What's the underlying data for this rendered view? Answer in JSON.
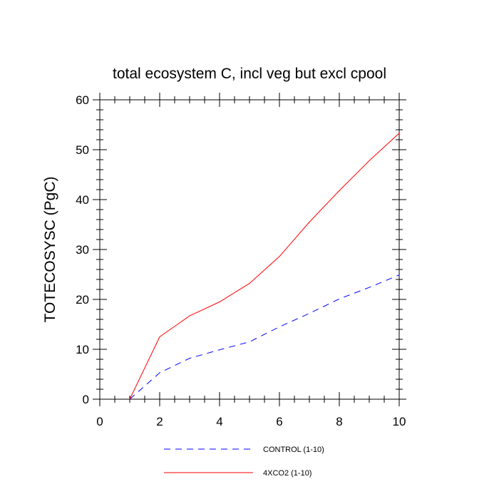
{
  "chart_data": {
    "type": "line",
    "title": "total ecosystem C, incl veg but excl cpool",
    "xlabel": "",
    "ylabel": "TOTECOSYSC  (PgC)",
    "xlim": [
      0,
      10
    ],
    "ylim": [
      0,
      60
    ],
    "xticks": [
      0,
      2,
      4,
      6,
      8,
      10
    ],
    "yticks": [
      0,
      10,
      20,
      30,
      40,
      50,
      60
    ],
    "x": [
      1,
      2,
      3,
      4,
      5,
      6,
      7,
      8,
      9,
      10
    ],
    "series": [
      {
        "name": "CONTROL (1-10)",
        "color": "#0000ff",
        "dash": "dashed",
        "values": [
          0.0,
          5.3,
          8.2,
          9.9,
          11.5,
          14.5,
          17.2,
          20.1,
          22.4,
          24.9
        ]
      },
      {
        "name": "4XCO2 (1-10)",
        "color": "#ff0000",
        "dash": "solid",
        "values": [
          0.0,
          12.5,
          16.7,
          19.5,
          23.2,
          28.6,
          35.5,
          41.8,
          47.8,
          53.3
        ]
      }
    ],
    "grid": false,
    "legend_position": "bottom"
  }
}
